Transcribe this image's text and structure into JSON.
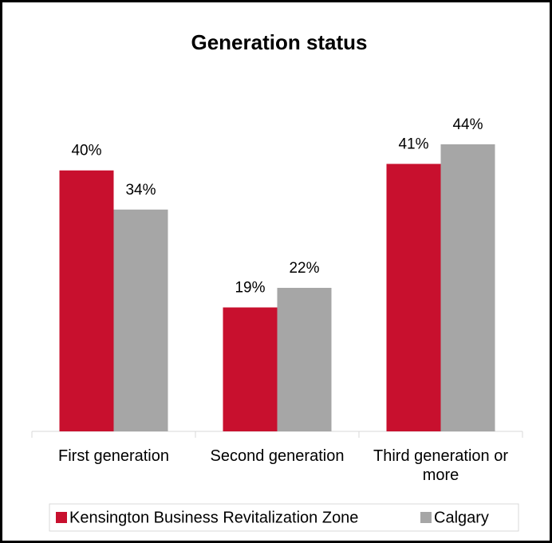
{
  "chart_data": {
    "type": "bar",
    "title": "Generation status",
    "categories": [
      "First generation",
      "Second generation",
      "Third generation or more"
    ],
    "series": [
      {
        "name": "Kensington Business Revitalization Zone",
        "color": "#c8102e",
        "values": [
          40,
          19,
          41
        ],
        "value_labels": [
          "40%",
          "19%",
          "41%"
        ]
      },
      {
        "name": "Calgary",
        "color": "#a6a6a6",
        "values": [
          34,
          22,
          44
        ],
        "value_labels": [
          "34%",
          "22%",
          "44%"
        ]
      }
    ],
    "legend": "bottom"
  }
}
